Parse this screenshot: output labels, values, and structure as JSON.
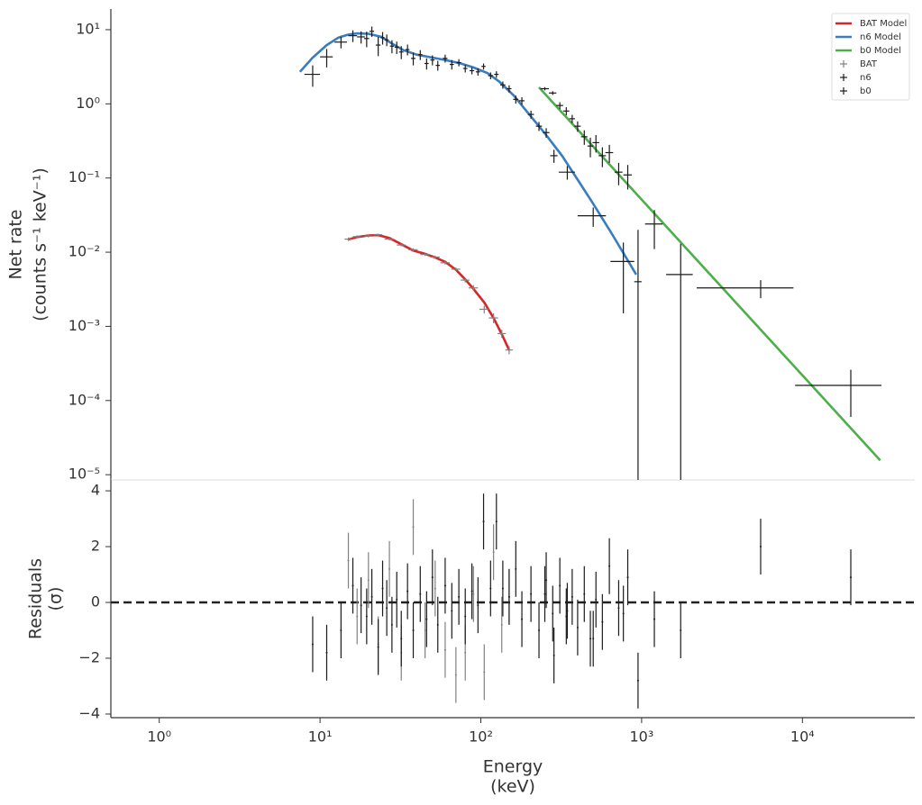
{
  "chart_data": [
    {
      "type": "errorbar",
      "ylabel": [
        "Net rate",
        "(counts s⁻¹ keV⁻¹)"
      ],
      "xscale": "log",
      "yscale": "log",
      "xlim": [
        0.5,
        50000
      ],
      "ylim": [
        8.5e-06,
        19
      ],
      "yticks": [
        {
          "value": 1e-05,
          "label": "10⁻⁵"
        },
        {
          "value": 0.0001,
          "label": "10⁻⁴"
        },
        {
          "value": 0.001,
          "label": "10⁻³"
        },
        {
          "value": 0.01,
          "label": "10⁻²"
        },
        {
          "value": 0.1,
          "label": "10⁻¹"
        },
        {
          "value": 1,
          "label": "10⁰"
        },
        {
          "value": 10,
          "label": "10¹"
        }
      ],
      "legend": "upper right",
      "series": [
        {
          "name": "BAT Model",
          "style": "line",
          "color": "#d62728",
          "x": [
            15,
            17,
            20,
            23,
            27,
            32,
            38,
            45,
            52,
            60,
            70,
            80,
            90,
            105,
            120,
            135,
            150
          ],
          "values": [
            0.0148,
            0.016,
            0.0168,
            0.017,
            0.0155,
            0.0128,
            0.0105,
            0.0095,
            0.0085,
            0.0074,
            0.0058,
            0.0043,
            0.0032,
            0.0021,
            0.0013,
            0.00078,
            0.00048
          ]
        },
        {
          "name": "n6 Model",
          "style": "line",
          "color": "#3a7dbf",
          "x": [
            7.5,
            9,
            11,
            13,
            15,
            17,
            20,
            24,
            28,
            33,
            40,
            50,
            60,
            75,
            90,
            110,
            130,
            160,
            200,
            250,
            320,
            400,
            500,
            650,
            800,
            925
          ],
          "values": [
            2.7,
            4.2,
            6.2,
            7.8,
            8.6,
            8.9,
            8.8,
            8.0,
            6.5,
            5.3,
            4.6,
            4.2,
            3.9,
            3.5,
            3.1,
            2.6,
            2.0,
            1.3,
            0.72,
            0.4,
            0.2,
            0.095,
            0.045,
            0.018,
            0.0085,
            0.005
          ]
        },
        {
          "name": "b0 Model",
          "style": "line",
          "color": "#4daf4a",
          "x": [
            230,
            1000,
            10000,
            30500
          ],
          "values": [
            1.67,
            0.0513,
            0.000219,
            1.56e-05
          ]
        },
        {
          "name": "BAT",
          "style": "errorbar",
          "color": "#808080",
          "x": [
            15,
            17,
            20,
            23,
            27,
            32,
            38,
            45,
            52,
            60,
            70,
            80,
            90,
            105,
            120,
            135,
            150
          ],
          "xerr": [
            0.8,
            1,
            1.2,
            1.4,
            1.8,
            2,
            2.5,
            3,
            3.5,
            4,
            4.5,
            5,
            6,
            7,
            8,
            8,
            8
          ],
          "values": [
            0.015,
            0.0162,
            0.0165,
            0.0172,
            0.015,
            0.0125,
            0.0108,
            0.0093,
            0.0086,
            0.0072,
            0.0059,
            0.0042,
            0.0033,
            0.0017,
            0.0013,
            0.0008,
            0.00048
          ],
          "yerr": [
            0.0008,
            0.0007,
            0.0007,
            0.0006,
            0.0006,
            0.0005,
            0.0005,
            0.0004,
            0.0004,
            0.0004,
            0.0003,
            0.0003,
            0.0003,
            0.0002,
            0.0002,
            0.0001,
            6e-05
          ]
        },
        {
          "name": "n6",
          "style": "errorbar",
          "color": "#1a1a1a",
          "x": [
            9,
            11,
            13.5,
            16,
            18,
            19.5,
            21,
            23,
            24.5,
            26,
            28,
            30,
            32,
            35,
            38,
            42,
            46,
            50,
            54,
            60,
            66,
            73,
            80,
            88,
            96,
            104,
            115,
            125,
            137,
            150,
            165,
            180,
            205,
            230,
            255,
            285,
            345,
            500,
            770
          ],
          "xerr": [
            1,
            1,
            1.2,
            1,
            1,
            0.7,
            0.7,
            0.8,
            0.7,
            0.7,
            0.8,
            0.9,
            1,
            1,
            1.2,
            1.3,
            1.4,
            1.5,
            1.6,
            2,
            2,
            2.5,
            2.5,
            3,
            3,
            3,
            4,
            4,
            5,
            5,
            6,
            7,
            9,
            10,
            12,
            15,
            40,
            100,
            130
          ],
          "values": [
            2.5,
            4.3,
            6.8,
            8.3,
            8.0,
            7.6,
            9.5,
            6.2,
            7.8,
            7.3,
            6.0,
            5.8,
            5.0,
            5.4,
            4.1,
            4.6,
            3.5,
            3.9,
            3.3,
            4.1,
            3.4,
            3.6,
            3.0,
            2.8,
            2.7,
            3.2,
            2.4,
            2.5,
            1.8,
            1.6,
            1.15,
            1.1,
            0.72,
            0.5,
            0.41,
            0.2,
            0.12,
            0.031,
            0.0075
          ],
          "yerr": [
            0.8,
            1.2,
            1.2,
            1.5,
            1.5,
            1.8,
            1.5,
            1.8,
            1.5,
            1.3,
            1.2,
            1.1,
            1.0,
            0.9,
            0.8,
            0.7,
            0.6,
            0.6,
            0.5,
            0.5,
            0.5,
            0.4,
            0.35,
            0.3,
            0.3,
            0.3,
            0.25,
            0.25,
            0.2,
            0.18,
            0.14,
            0.13,
            0.09,
            0.07,
            0.06,
            0.04,
            0.025,
            0.009,
            0.006
          ]
        },
        {
          "name": "b0",
          "style": "errorbar",
          "color": "#1a1a1a",
          "x": [
            250,
            280,
            310,
            340,
            370,
            400,
            440,
            480,
            520,
            570,
            630,
            720,
            820,
            950,
            1200,
            1750,
            5500,
            20000
          ],
          "xerr": [
            15,
            15,
            15,
            15,
            15,
            18,
            20,
            20,
            25,
            30,
            35,
            40,
            50,
            50,
            150,
            330,
            3300,
            11000
          ],
          "values": [
            1.6,
            1.4,
            0.95,
            0.8,
            0.63,
            0.5,
            0.36,
            0.27,
            0.3,
            0.2,
            0.22,
            0.12,
            0.11,
            0.004,
            0.024,
            0.005,
            0.0033,
            0.00016
          ],
          "yerr": [
            0.08,
            0.08,
            0.1,
            0.1,
            0.08,
            0.08,
            0.08,
            0.08,
            0.08,
            0.06,
            0.06,
            0.04,
            0.04,
            0.016,
            0.013,
            0.008,
            0.0009,
            0.0001
          ]
        }
      ]
    },
    {
      "type": "errorbar",
      "xlabel": [
        "Energy",
        "(keV)"
      ],
      "ylabel": [
        "Residuals",
        "(σ)"
      ],
      "xscale": "log",
      "yscale": "linear",
      "xlim": [
        0.5,
        50000
      ],
      "ylim": [
        -4.13,
        4.39
      ],
      "xticks": [
        {
          "value": 1,
          "label": "10⁰"
        },
        {
          "value": 10,
          "label": "10¹"
        },
        {
          "value": 100,
          "label": "10²"
        },
        {
          "value": 1000,
          "label": "10³"
        },
        {
          "value": 10000,
          "label": "10⁴"
        }
      ],
      "yticks": [
        {
          "value": -4,
          "label": "−4"
        },
        {
          "value": -2,
          "label": "−2"
        },
        0,
        2,
        4
      ],
      "hline": 0,
      "series": [
        {
          "color": "#808080",
          "x": [
            15,
            17,
            20,
            23,
            27,
            32,
            38,
            45,
            52,
            60,
            70,
            80,
            90,
            105,
            120,
            135,
            150
          ],
          "values": [
            1.5,
            -0.5,
            0.8,
            -1.5,
            1.2,
            -1.8,
            2.7,
            -1,
            0.5,
            -1.7,
            -2.6,
            -1.8,
            0.3,
            -2.5,
            1.8,
            -0.8,
            0.2
          ],
          "yerr": [
            1,
            1,
            1,
            1,
            1,
            1,
            1,
            1,
            1,
            1,
            1,
            1,
            1,
            1,
            1,
            1,
            1
          ]
        },
        {
          "color": "#1a1a1a",
          "x": [
            9,
            11,
            13.5,
            16,
            18,
            19.5,
            21,
            23,
            24.5,
            26,
            28,
            30,
            32,
            35,
            38,
            42,
            46,
            50,
            54,
            60,
            66,
            73,
            80,
            88,
            96,
            104,
            115,
            125,
            137,
            150,
            165,
            180,
            205,
            230,
            255,
            285,
            345,
            500,
            770
          ],
          "values": [
            -1.5,
            -1.8,
            -1,
            0.6,
            -0.1,
            -0.5,
            0.2,
            -1.6,
            0.5,
            -0.2,
            -0.8,
            0.1,
            -1.3,
            0.4,
            -1.0,
            0.3,
            -0.6,
            0.9,
            -0.8,
            0.6,
            -0.3,
            0.2,
            -0.5,
            0.4,
            -0.1,
            2.9,
            0.5,
            2.9,
            0.5,
            0.2,
            1.2,
            -0.6,
            0.3,
            -1.0,
            0.8,
            -1.9,
            -0.3,
            -1.3,
            -0.4
          ],
          "yerr": [
            1,
            1,
            1,
            1,
            1,
            1,
            1,
            1,
            1,
            1,
            1,
            1,
            1,
            1,
            1,
            1,
            1,
            1,
            1,
            1,
            1,
            1,
            1,
            1,
            1,
            1,
            1,
            1,
            1,
            1,
            1,
            1,
            1,
            1,
            1,
            1,
            1,
            1,
            1
          ]
        },
        {
          "color": "#1a1a1a",
          "x": [
            250,
            280,
            310,
            340,
            370,
            400,
            440,
            480,
            520,
            570,
            630,
            720,
            820,
            950,
            1200,
            1750,
            5500,
            20000
          ],
          "values": [
            0.3,
            -0.4,
            0.6,
            -0.5,
            0.2,
            -0.9,
            0.3,
            -1.3,
            0.1,
            -0.7,
            1.3,
            -0.2,
            0.9,
            -2.8,
            -0.6,
            -1.0,
            2.0,
            0.9
          ],
          "yerr": [
            1,
            1,
            1,
            1,
            1,
            1,
            1,
            1,
            1,
            1,
            1,
            1,
            1,
            1,
            1,
            1,
            1,
            1
          ]
        }
      ]
    }
  ]
}
